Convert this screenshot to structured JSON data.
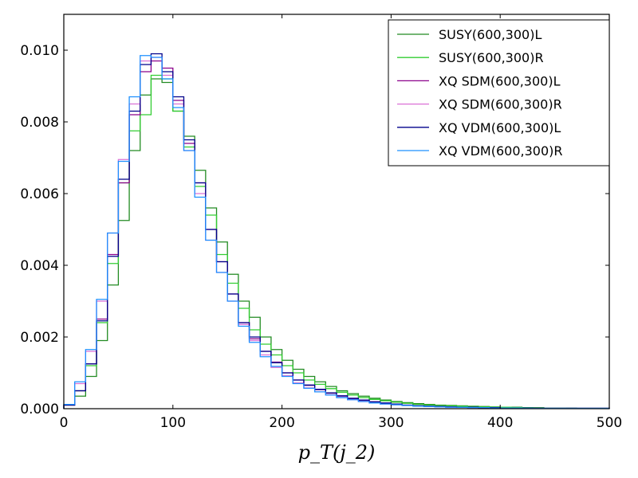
{
  "chart_data": {
    "type": "histogram-step",
    "title": "",
    "xlabel": "p_T(j_2)",
    "xlabel_parts": {
      "main": "p",
      "sub1": "T",
      "open": "(j",
      "sub2": "2",
      "close": ")"
    },
    "ylabel": "",
    "xlim": [
      0,
      500
    ],
    "ylim": [
      0,
      0.011
    ],
    "xticks": [
      0,
      100,
      200,
      300,
      400,
      500
    ],
    "xtick_labels": [
      "0",
      "100",
      "200",
      "300",
      "400",
      "500"
    ],
    "yticks": [
      0,
      0.002,
      0.004,
      0.006,
      0.008,
      0.01
    ],
    "ytick_labels": [
      "0.000",
      "0.002",
      "0.004",
      "0.006",
      "0.008",
      "0.010"
    ],
    "bin_width": 10,
    "grid": false,
    "legend_position": "top-right",
    "series": [
      {
        "name": "SUSY(600,300)L",
        "color": "#228B22",
        "values": [
          0.0001,
          0.00035,
          0.0009,
          0.0019,
          0.00345,
          0.00525,
          0.0072,
          0.00875,
          0.0092,
          0.0091,
          0.0083,
          0.0076,
          0.00665,
          0.0056,
          0.00465,
          0.00375,
          0.003,
          0.00255,
          0.002,
          0.00165,
          0.00135,
          0.0011,
          0.0009,
          0.00075,
          0.00062,
          0.0005,
          0.00042,
          0.00035,
          0.00029,
          0.00024,
          0.0002,
          0.00017,
          0.00014,
          0.00012,
          0.0001,
          9e-05,
          8e-05,
          7e-05,
          6e-05,
          5e-05,
          4e-05,
          4e-05,
          3e-05,
          3e-05,
          2e-05,
          2e-05,
          2e-05,
          1e-05,
          1e-05,
          1e-05
        ]
      },
      {
        "name": "SUSY(600,300)R",
        "color": "#32CD32",
        "values": [
          0.0001,
          0.0005,
          0.0012,
          0.0024,
          0.00405,
          0.0063,
          0.00775,
          0.0082,
          0.0093,
          0.0092,
          0.0083,
          0.0073,
          0.0062,
          0.0054,
          0.0043,
          0.0035,
          0.0028,
          0.0022,
          0.0018,
          0.0015,
          0.0012,
          0.001,
          0.0008,
          0.00068,
          0.00056,
          0.00046,
          0.00038,
          0.00031,
          0.00026,
          0.00022,
          0.00018,
          0.00015,
          0.00012,
          0.0001,
          9e-05,
          8e-05,
          7e-05,
          6e-05,
          5e-05,
          4e-05,
          4e-05,
          3e-05,
          3e-05,
          2e-05,
          2e-05,
          2e-05,
          1e-05,
          1e-05,
          1e-05,
          1e-05
        ]
      },
      {
        "name": "XQ SDM(600,300)L",
        "color": "#8B008B",
        "values": [
          0.0001,
          0.0005,
          0.00125,
          0.0025,
          0.0043,
          0.0063,
          0.0082,
          0.0094,
          0.0097,
          0.0095,
          0.0086,
          0.0074,
          0.0063,
          0.005,
          0.0041,
          0.0032,
          0.0024,
          0.00195,
          0.0016,
          0.0013,
          0.001,
          0.0008,
          0.00065,
          0.00053,
          0.00043,
          0.00035,
          0.00028,
          0.00023,
          0.00019,
          0.00015,
          0.00012,
          0.0001,
          8e-05,
          7e-05,
          6e-05,
          5e-05,
          4e-05,
          4e-05,
          3e-05,
          3e-05,
          2e-05,
          2e-05,
          2e-05,
          1e-05,
          1e-05,
          1e-05,
          1e-05,
          1e-05,
          1e-05,
          1e-05
        ]
      },
      {
        "name": "XQ SDM(600,300)R",
        "color": "#DA70D6",
        "values": [
          0.0001,
          0.0007,
          0.0016,
          0.003,
          0.0049,
          0.00695,
          0.0085,
          0.0097,
          0.0098,
          0.0093,
          0.0085,
          0.0072,
          0.006,
          0.0047,
          0.0038,
          0.003,
          0.00235,
          0.0019,
          0.0015,
          0.00115,
          0.00092,
          0.00072,
          0.00058,
          0.00047,
          0.00038,
          0.00031,
          0.00025,
          0.0002,
          0.00016,
          0.00013,
          0.00011,
          9e-05,
          7e-05,
          6e-05,
          5e-05,
          4e-05,
          4e-05,
          3e-05,
          3e-05,
          2e-05,
          2e-05,
          2e-05,
          1e-05,
          1e-05,
          1e-05,
          1e-05,
          1e-05,
          1e-05,
          1e-05,
          1e-05
        ]
      },
      {
        "name": "XQ VDM(600,300)L",
        "color": "#00008B",
        "values": [
          0.0001,
          0.0005,
          0.00125,
          0.00245,
          0.00425,
          0.0064,
          0.0083,
          0.0096,
          0.0099,
          0.0094,
          0.0087,
          0.0075,
          0.0063,
          0.005,
          0.0041,
          0.0032,
          0.0024,
          0.002,
          0.0016,
          0.00128,
          0.001,
          0.0008,
          0.00066,
          0.00054,
          0.00044,
          0.00036,
          0.00029,
          0.00024,
          0.00019,
          0.00016,
          0.00013,
          0.0001,
          8e-05,
          7e-05,
          6e-05,
          5e-05,
          4e-05,
          4e-05,
          3e-05,
          3e-05,
          2e-05,
          2e-05,
          2e-05,
          1e-05,
          1e-05,
          1e-05,
          1e-05,
          1e-05,
          1e-05,
          1e-05
        ]
      },
      {
        "name": "XQ VDM(600,300)R",
        "color": "#1E90FF",
        "values": [
          0.00012,
          0.00075,
          0.00165,
          0.00305,
          0.0049,
          0.0069,
          0.0087,
          0.00985,
          0.0098,
          0.0092,
          0.0084,
          0.0072,
          0.0059,
          0.0047,
          0.0038,
          0.003,
          0.0023,
          0.00185,
          0.00145,
          0.00118,
          0.0009,
          0.0007,
          0.00057,
          0.00047,
          0.00038,
          0.00031,
          0.00025,
          0.0002,
          0.00016,
          0.00013,
          0.00011,
          9e-05,
          7e-05,
          6e-05,
          5e-05,
          4e-05,
          4e-05,
          3e-05,
          3e-05,
          2e-05,
          2e-05,
          2e-05,
          1e-05,
          1e-05,
          1e-05,
          1e-05,
          1e-05,
          1e-05,
          1e-05,
          1e-05
        ]
      }
    ]
  }
}
